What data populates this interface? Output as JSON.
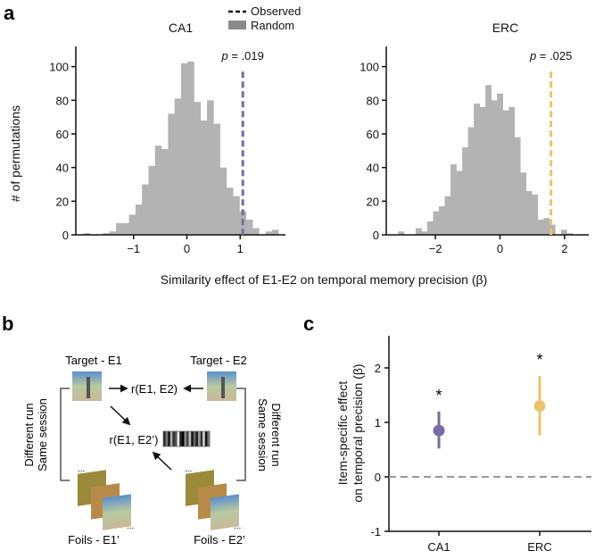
{
  "panel_labels": {
    "a": "a",
    "b": "b",
    "c": "c"
  },
  "chart_data": [
    {
      "type": "bar",
      "subtype": "histogram",
      "title": "CA1",
      "xlabel": "Similarity effect of E1-E2 on temporal memory precision (β)",
      "ylabel": "# of permutations",
      "xlim": [
        -1.95,
        1.85
      ],
      "ylim": [
        0,
        112
      ],
      "xticks": [
        -1,
        0,
        1
      ],
      "xtick_labels": [
        "−1",
        "0",
        "1"
      ],
      "yticks": [
        0,
        20,
        40,
        60,
        80,
        100
      ],
      "bin_start": -1.94,
      "bin_width": 0.122,
      "counts": [
        1,
        0,
        0,
        1,
        2,
        7,
        7,
        12,
        18,
        30,
        41,
        53,
        51,
        72,
        81,
        102,
        103,
        79,
        68,
        80,
        66,
        40,
        28,
        23,
        14,
        9,
        4,
        0,
        2,
        3
      ],
      "observed": 1.05,
      "observed_color": "#7a6aa6",
      "p_label": "p",
      "p_value": " = .019"
    },
    {
      "type": "bar",
      "subtype": "histogram",
      "title": "ERC",
      "xlim": [
        -3.3,
        2.75
      ],
      "ylim": [
        0,
        112
      ],
      "xticks": [
        -2,
        0,
        2
      ],
      "xtick_labels": [
        "−2",
        "0",
        "2"
      ],
      "yticks": [
        0,
        20,
        40,
        60,
        80,
        100
      ],
      "bin_start": -3.15,
      "bin_width": 0.18,
      "counts": [
        2,
        0,
        0,
        4,
        2,
        8,
        14,
        17,
        23,
        42,
        38,
        52,
        64,
        78,
        76,
        89,
        80,
        84,
        74,
        76,
        58,
        37,
        26,
        24,
        9,
        10,
        6,
        0,
        3,
        1
      ],
      "observed": 1.58,
      "observed_color": "#e9c46d",
      "p_label": "p",
      "p_value": " = .025"
    },
    {
      "type": "scatter",
      "subtype": "pointrange",
      "ylabel_line1": "Item-specific effect",
      "ylabel_line2": "on temporal precision (β)",
      "categories": [
        "CA1",
        "ERC"
      ],
      "values": [
        0.85,
        1.3
      ],
      "ci_low": [
        0.52,
        0.76
      ],
      "ci_high": [
        1.2,
        1.85
      ],
      "colors": [
        "#7a6aa6",
        "#e9c46d"
      ],
      "significance": [
        "*",
        "*"
      ],
      "ylim": [
        -1,
        2.6
      ],
      "yticks": [
        -1,
        0,
        1,
        2
      ],
      "reference_line": 0
    }
  ],
  "legend": {
    "observed": "Observed",
    "random": "Random",
    "placement": "top-center"
  },
  "diagram": {
    "target_e1": "Target - E1",
    "target_e2": "Target - E2",
    "r_e1_e2": "r(E1, E2)",
    "r_e1_e2p": "r(E1, E2’)",
    "left_note_1": "Different run",
    "left_note_2": "Same session",
    "right_note_1": "Different run",
    "right_note_2": "Same session",
    "foils_e1": "Foils - E1’",
    "foils_e2": "Foils - E2’",
    "ellipsis": "..."
  }
}
